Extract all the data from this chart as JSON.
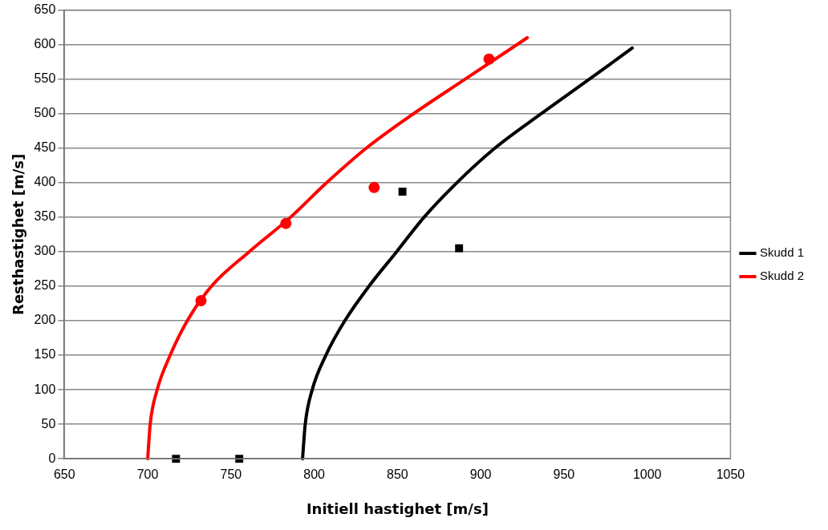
{
  "chart_data": {
    "type": "line",
    "xlabel": "Initiell hastighet [m/s]",
    "ylabel": "Resthastighet [m/s]",
    "xlim": [
      650,
      1050
    ],
    "xticks": [
      650,
      700,
      750,
      800,
      850,
      900,
      950,
      1000,
      1050
    ],
    "ylim": [
      0,
      650
    ],
    "yticks": [
      0,
      50,
      100,
      150,
      200,
      250,
      300,
      350,
      400,
      450,
      500,
      550,
      600,
      650
    ],
    "grid": "y",
    "legend": "right",
    "marker": "none",
    "line_style": "solid",
    "series": [
      {
        "name": "Skudd 1",
        "type": "line",
        "color": "#000000",
        "x": [
          793,
          794.6,
          798.8,
          807,
          818.4,
          832.9,
          849.5,
          866,
          885.7,
          908.5,
          936.4,
          965.3,
          991
        ],
        "values": [
          0,
          50,
          100,
          150,
          200,
          250,
          300,
          350,
          400,
          450,
          500,
          550,
          595
        ]
      },
      {
        "name": "Skudd 2",
        "type": "line",
        "color": "#ff0000",
        "x": [
          700,
          701.5,
          705.7,
          713.5,
          723.8,
          738.3,
          761,
          785.8,
          807.5,
          831.3,
          859.7,
          890.7,
          928
        ],
        "values": [
          0,
          50,
          100,
          150,
          200,
          250,
          300,
          350,
          400,
          450,
          500,
          550,
          610
        ]
      },
      {
        "type": "scatter",
        "marker": "square",
        "color": "#000000",
        "x": [
          717,
          755,
          853,
          887
        ],
        "values": [
          0,
          0,
          387,
          305
        ]
      },
      {
        "type": "scatter",
        "marker": "circle",
        "color": "#ff0000",
        "x": [
          732,
          783,
          836,
          905
        ],
        "values": [
          229,
          341,
          393,
          579
        ]
      }
    ]
  }
}
